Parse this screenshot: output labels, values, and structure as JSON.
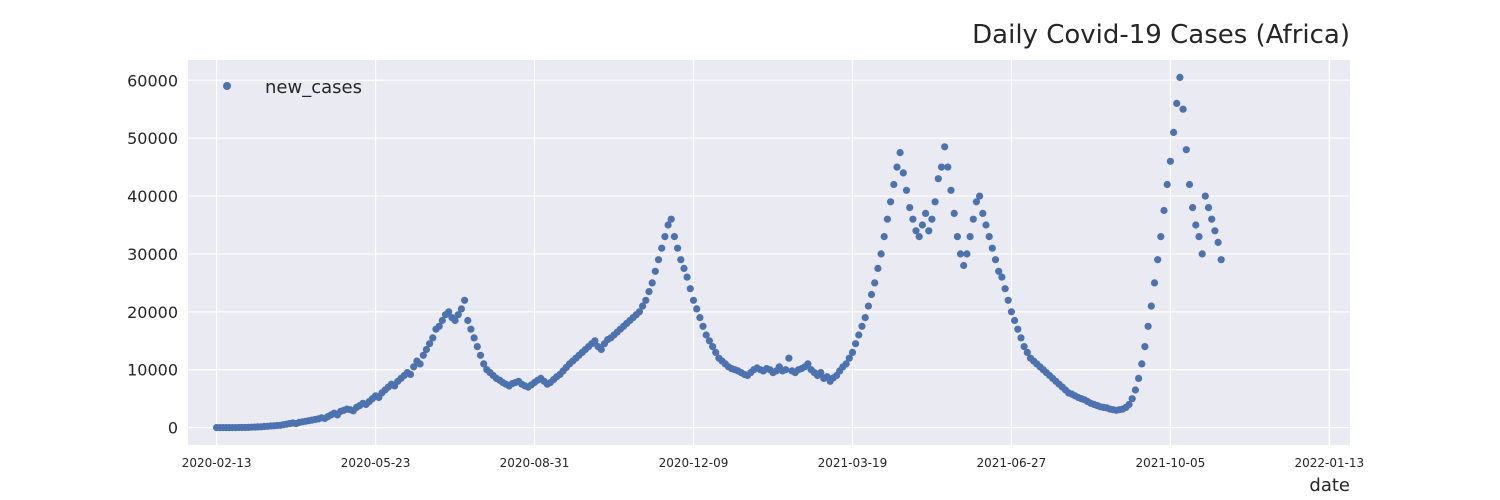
{
  "chart_data": {
    "type": "scatter",
    "title": "Daily Covid-19 Cases (Africa)",
    "xlabel": "date",
    "ylabel": "",
    "x_range": [
      "2020-01-26",
      "2022-01-26"
    ],
    "ylim": [
      -3000,
      63500
    ],
    "y_ticks": [
      0,
      10000,
      20000,
      30000,
      40000,
      50000,
      60000
    ],
    "x_ticks": [
      "2020-02-13",
      "2020-05-23",
      "2020-08-31",
      "2020-12-09",
      "2021-03-19",
      "2021-06-27",
      "2021-10-05",
      "2022-01-13"
    ],
    "grid": true,
    "legend_position": "top-left",
    "colors": {
      "background": "#EAEAF2",
      "grid": "#FFFFFF",
      "marker": "#4C72B0",
      "text": "#262626"
    },
    "series": [
      {
        "name": "new_cases",
        "interval_days": 2,
        "start_date": "2020-02-13",
        "values": [
          1,
          2,
          3,
          5,
          6,
          8,
          12,
          18,
          20,
          30,
          48,
          70,
          90,
          120,
          150,
          190,
          230,
          280,
          320,
          360,
          400,
          500,
          600,
          700,
          800,
          700,
          900,
          1000,
          1100,
          1200,
          1300,
          1400,
          1500,
          1700,
          1600,
          1900,
          2200,
          2500,
          2200,
          2800,
          3000,
          3200,
          3100,
          2900,
          3500,
          3800,
          4200,
          4000,
          4500,
          5000,
          5500,
          5200,
          6000,
          6500,
          7000,
          7500,
          7200,
          8000,
          8500,
          9000,
          9500,
          9200,
          10500,
          11500,
          11000,
          12500,
          13500,
          14500,
          15500,
          17000,
          17500,
          18500,
          19500,
          20000,
          19000,
          18500,
          19500,
          20500,
          22000,
          18500,
          17000,
          15500,
          14000,
          12500,
          11000,
          10000,
          9500,
          9000,
          8500,
          8200,
          7800,
          7500,
          7200,
          7600,
          7800,
          8000,
          7500,
          7200,
          7000,
          7400,
          7800,
          8200,
          8500,
          8000,
          7500,
          7800,
          8300,
          8800,
          9200,
          9800,
          10400,
          11000,
          11500,
          12000,
          12500,
          13000,
          13500,
          14000,
          14500,
          15000,
          14000,
          13500,
          14500,
          15200,
          15500,
          16000,
          16500,
          17000,
          17500,
          18000,
          18500,
          19000,
          19500,
          20000,
          21000,
          22000,
          23500,
          25000,
          27000,
          29000,
          31000,
          33000,
          35000,
          36000,
          33000,
          31000,
          29000,
          27500,
          26000,
          24000,
          22000,
          20500,
          19000,
          17500,
          16000,
          15000,
          14000,
          13000,
          12000,
          11500,
          11000,
          10500,
          10200,
          10000,
          9800,
          9500,
          9200,
          9000,
          9500,
          10000,
          10300,
          10000,
          9800,
          10200,
          10000,
          9500,
          9800,
          10500,
          9800,
          10000,
          12000,
          9800,
          9500,
          10000,
          10200,
          10500,
          11000,
          10000,
          9500,
          9000,
          9500,
          8500,
          8800,
          8000,
          8600,
          9000,
          9800,
          10500,
          11000,
          12000,
          13000,
          14500,
          16000,
          17500,
          19000,
          21000,
          23000,
          25000,
          27500,
          30000,
          33000,
          36000,
          39000,
          42000,
          45000,
          47500,
          44000,
          41000,
          38000,
          36000,
          34000,
          33000,
          35000,
          37000,
          34000,
          36000,
          39000,
          43000,
          45000,
          48500,
          45000,
          41000,
          37000,
          33000,
          30000,
          28000,
          30000,
          33000,
          36000,
          39000,
          40000,
          37000,
          35000,
          33000,
          31000,
          29000,
          27000,
          26000,
          24000,
          22000,
          20000,
          18500,
          17000,
          15500,
          14000,
          13000,
          12000,
          11500,
          11000,
          10500,
          10000,
          9500,
          9000,
          8500,
          8000,
          7500,
          7000,
          6500,
          6000,
          5800,
          5500,
          5200,
          5000,
          4800,
          4500,
          4200,
          4000,
          3800,
          3600,
          3500,
          3400,
          3200,
          3100,
          3000,
          3100,
          3200,
          3500,
          4000,
          5000,
          6500,
          8500,
          11000,
          14000,
          17500,
          21000,
          25000,
          29000,
          33000,
          37500,
          42000,
          46000,
          51000,
          56000,
          60500,
          55000,
          48000,
          42000,
          38000,
          35000,
          33000,
          30000,
          40000,
          38000,
          36000,
          34000,
          32000,
          29000
        ]
      }
    ]
  }
}
